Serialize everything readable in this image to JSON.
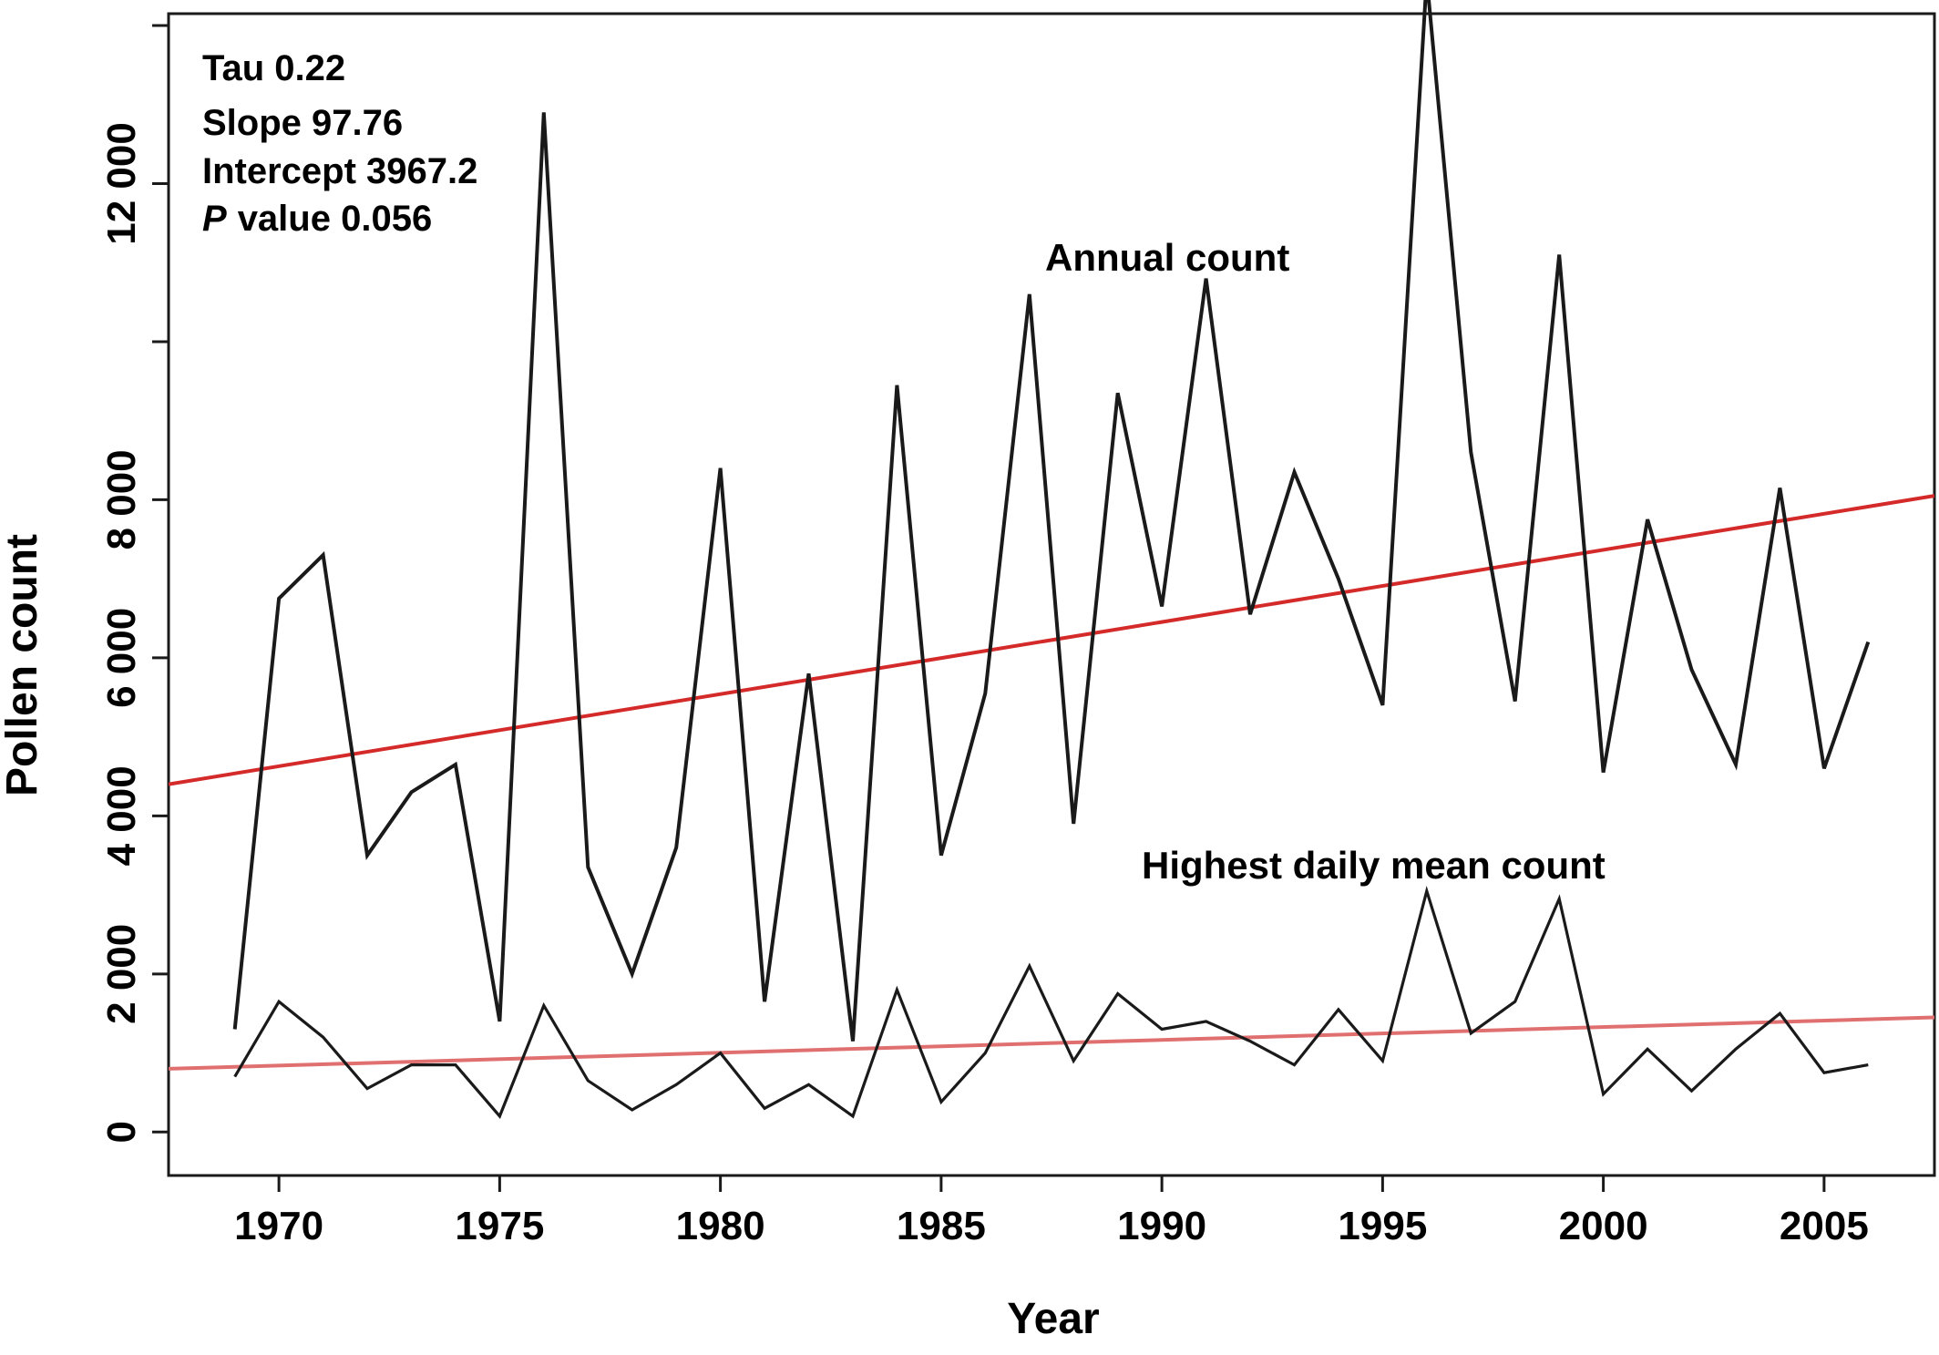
{
  "chart_data": {
    "type": "line",
    "xlabel": "Year",
    "ylabel": "Pollen count",
    "xlim": [
      1967.5,
      2007.5
    ],
    "ylim": [
      -550,
      14150
    ],
    "x_ticks": [
      1970,
      1975,
      1980,
      1985,
      1990,
      1995,
      2000,
      2005
    ],
    "x_tick_labels": [
      "1970",
      "1975",
      "1980",
      "1985",
      "1990",
      "1995",
      "2000",
      "2005"
    ],
    "y_ticks": [
      0,
      2000,
      4000,
      6000,
      8000,
      12000
    ],
    "y_tick_labels": [
      "0",
      "2 000",
      "4 000",
      "6 000",
      "8 000",
      "12 000"
    ],
    "y_tick_marks": [
      0,
      2000,
      4000,
      6000,
      8000,
      10000,
      12000,
      14000
    ],
    "grid": false,
    "x": [
      1969,
      1970,
      1971,
      1972,
      1973,
      1974,
      1975,
      1976,
      1977,
      1978,
      1979,
      1980,
      1981,
      1982,
      1983,
      1984,
      1985,
      1986,
      1987,
      1988,
      1989,
      1990,
      1991,
      1992,
      1993,
      1994,
      1995,
      1996,
      1997,
      1998,
      1999,
      2000,
      2001,
      2002,
      2003,
      2004,
      2005,
      2006
    ],
    "series": [
      {
        "name": "Annual count",
        "color": "#1a1a1a",
        "values": [
          1300,
          6750,
          7300,
          3500,
          4300,
          4650,
          1400,
          12900,
          3350,
          2000,
          3600,
          8400,
          1650,
          5800,
          1150,
          9450,
          3500,
          5550,
          10600,
          3900,
          9350,
          6650,
          10800,
          6550,
          8350,
          7000,
          5400,
          14600,
          8600,
          5450,
          11100,
          4550,
          7750,
          5850,
          4650,
          8150,
          4600,
          6200
        ]
      },
      {
        "name": "Highest daily mean count",
        "color": "#1a1a1a",
        "values": [
          700,
          1650,
          1200,
          550,
          850,
          850,
          200,
          1600,
          650,
          280,
          600,
          1000,
          300,
          600,
          200,
          1800,
          380,
          1000,
          2100,
          900,
          1750,
          1300,
          1400,
          1150,
          850,
          1550,
          900,
          3050,
          1250,
          1650,
          2950,
          480,
          1050,
          520,
          1050,
          1500,
          750,
          850
        ]
      }
    ],
    "trend_lines": [
      {
        "color": "#d42a2a",
        "x": [
          1967.5,
          2007.5
        ],
        "y": [
          4400,
          8050
        ]
      },
      {
        "color": "#e07070",
        "x": [
          1967.5,
          2007.5
        ],
        "y": [
          800,
          1450
        ]
      }
    ],
    "annotations": {
      "stats": [
        "Tau 0.22",
        "Slope 97.76",
        "Intercept 3967.2",
        "value 0.056"
      ],
      "p_symbol": "P",
      "annual_label": "Annual count",
      "daily_label": "Highest daily mean count"
    }
  }
}
